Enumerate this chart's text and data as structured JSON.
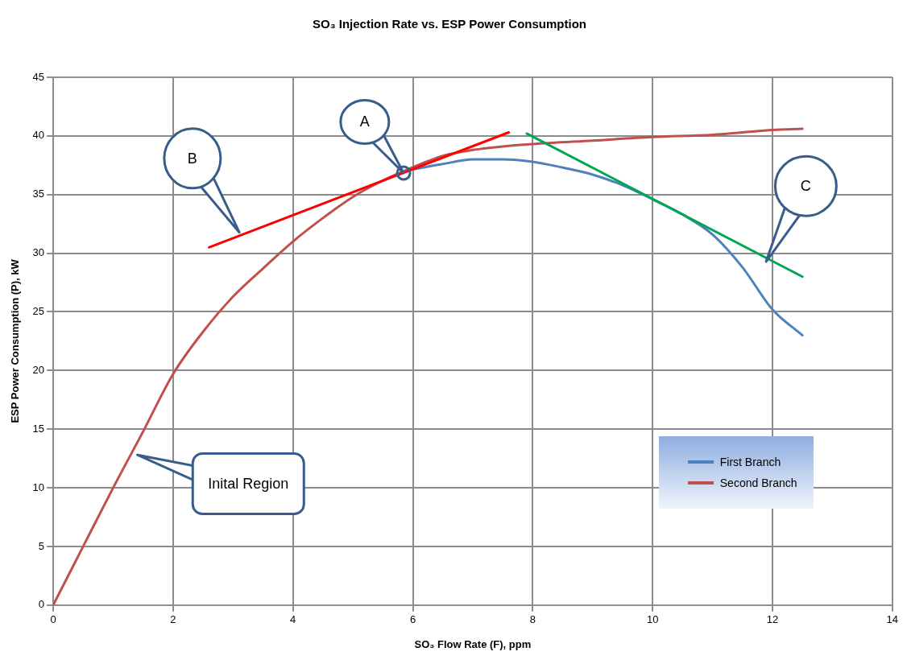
{
  "chart_data": {
    "type": "line",
    "title": "SO₃ Injection Rate vs. ESP Power Consumption",
    "xlabel": "SO₃ Flow Rate (F), ppm",
    "ylabel": "ESP Power Consumption (P), kW",
    "xlim": [
      0,
      14
    ],
    "xticks": [
      0,
      2,
      4,
      6,
      8,
      10,
      12,
      14
    ],
    "ylim": [
      0,
      45
    ],
    "yticks": [
      0,
      5,
      10,
      15,
      20,
      25,
      30,
      35,
      40,
      45
    ],
    "grid": true,
    "legend": "bottom right",
    "marker": "none",
    "line_style": "solid",
    "series": [
      {
        "name": "First Branch",
        "color": "#4f81bd",
        "x": [
          5.85,
          6.5,
          7,
          7.5,
          8,
          8.5,
          9,
          9.5,
          10,
          10.5,
          11,
          11.5,
          12,
          12.5
        ],
        "values": [
          37,
          37.6,
          38,
          38,
          37.8,
          37.3,
          36.7,
          35.8,
          34.6,
          33.3,
          31.6,
          28.8,
          25.2,
          23
        ]
      },
      {
        "name": "Second Branch",
        "color": "#c0504d",
        "x": [
          0,
          0.5,
          1,
          1.5,
          2,
          2.5,
          3,
          3.5,
          4,
          4.5,
          5,
          5.5,
          5.85,
          6.5,
          7,
          7.5,
          8,
          9,
          10,
          11,
          11.5,
          12,
          12.5
        ],
        "values": [
          0,
          5,
          10,
          14.8,
          19.7,
          23.3,
          26.3,
          28.7,
          31,
          33,
          34.8,
          36.2,
          37,
          38.3,
          38.8,
          39.1,
          39.3,
          39.6,
          39.9,
          40.1,
          40.3,
          40.5,
          40.6
        ]
      },
      {
        "type": "line",
        "color": "#ff0000",
        "x": [
          2.6,
          7.6
        ],
        "values": [
          30.5,
          40.3
        ]
      },
      {
        "type": "line",
        "color": "#00a651",
        "x": [
          7.9,
          12.5
        ],
        "values": [
          40.2,
          28
        ]
      }
    ],
    "annotations": [
      "A",
      "B",
      "C",
      "Inital Region"
    ]
  }
}
